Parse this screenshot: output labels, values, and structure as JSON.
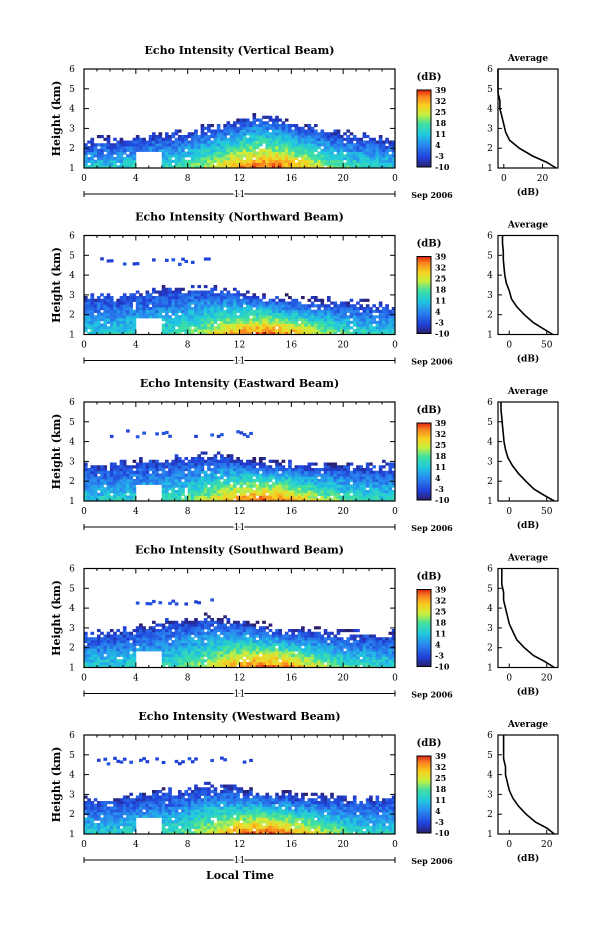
{
  "figure": {
    "xlabel": "Local Time",
    "day_label": "11",
    "date_label": "Sep 2006",
    "ylabel": "Height (km)",
    "profile_title": "Average",
    "profile_xlabel": "(dB)",
    "colorbar_unit": "(dB)"
  },
  "chart_data": [
    {
      "type": "heatmap",
      "title": "Echo Intensity (Vertical Beam)",
      "xlabel": "Local Time",
      "ylabel": "Height (km)",
      "x_ticks": [
        "0",
        "4",
        "8",
        "12",
        "16",
        "20",
        "0"
      ],
      "y_ticks": [
        "1",
        "2",
        "3",
        "4",
        "5",
        "6"
      ],
      "xlim": [
        0,
        24
      ],
      "ylim": [
        1,
        6
      ],
      "colorbar": {
        "label": "(dB)",
        "ticks": [
          "-10",
          "-3",
          "4",
          "11",
          "18",
          "25",
          "32",
          "39"
        ],
        "range": [
          -10,
          39
        ]
      },
      "echo_top_km": [
        2.2,
        2.3,
        2.2,
        2.4,
        2.5,
        2.6,
        2.6,
        2.7,
        2.8,
        3.0,
        3.1,
        3.2,
        3.4,
        3.5,
        3.4,
        3.3,
        3.1,
        3.0,
        2.8,
        2.7,
        2.6,
        2.5,
        2.4,
        2.3
      ],
      "sparse_layer": null,
      "profile": {
        "title": "Average",
        "xlabel": "(dB)",
        "x_ticks": [
          "0",
          "20"
        ],
        "xlim": [
          -3,
          28
        ],
        "heights": [
          1.0,
          1.3,
          1.6,
          2.0,
          2.4,
          2.8,
          3.2,
          3.6,
          4.0,
          4.4,
          4.8,
          5.2,
          5.6,
          6.0
        ],
        "values": [
          27,
          22,
          15,
          8,
          3,
          1,
          0,
          -1,
          -2,
          -2,
          -3,
          -3,
          -3,
          -3
        ]
      }
    },
    {
      "type": "heatmap",
      "title": "Echo Intensity (Northward Beam)",
      "xlabel": "Local Time",
      "ylabel": "Height (km)",
      "x_ticks": [
        "0",
        "4",
        "8",
        "12",
        "16",
        "20",
        "0"
      ],
      "y_ticks": [
        "1",
        "2",
        "3",
        "4",
        "5",
        "6"
      ],
      "xlim": [
        0,
        24
      ],
      "ylim": [
        1,
        6
      ],
      "colorbar": {
        "label": "(dB)",
        "ticks": [
          "-10",
          "-3",
          "4",
          "11",
          "18",
          "25",
          "32",
          "39"
        ],
        "range": [
          -10,
          39
        ]
      },
      "echo_top_km": [
        2.8,
        2.9,
        2.8,
        3.0,
        3.1,
        3.1,
        3.2,
        3.2,
        3.3,
        3.3,
        3.2,
        3.1,
        3.0,
        2.9,
        2.8,
        2.7,
        2.7,
        2.6,
        2.6,
        2.5,
        2.5,
        2.5,
        2.4,
        2.4
      ],
      "sparse_layer": {
        "height_km": 4.7,
        "start_h": 1.0,
        "end_h": 10.0
      },
      "profile": {
        "title": "Average",
        "xlabel": "(dB)",
        "x_ticks": [
          "0",
          "50"
        ],
        "xlim": [
          -15,
          65
        ],
        "heights": [
          1.0,
          1.3,
          1.6,
          2.0,
          2.4,
          2.8,
          3.2,
          3.6,
          4.0,
          4.4,
          4.8,
          5.2,
          5.6,
          6.0
        ],
        "values": [
          58,
          45,
          32,
          20,
          10,
          3,
          0,
          -4,
          -6,
          -7,
          -8,
          -8,
          -9,
          -9
        ]
      }
    },
    {
      "type": "heatmap",
      "title": "Echo Intensity (Eastward Beam)",
      "xlabel": "Local Time",
      "ylabel": "Height (km)",
      "x_ticks": [
        "0",
        "4",
        "8",
        "12",
        "16",
        "20",
        "0"
      ],
      "y_ticks": [
        "1",
        "2",
        "3",
        "4",
        "5",
        "6"
      ],
      "xlim": [
        0,
        24
      ],
      "ylim": [
        1,
        6
      ],
      "colorbar": {
        "label": "(dB)",
        "ticks": [
          "-10",
          "-3",
          "4",
          "11",
          "18",
          "25",
          "32",
          "39"
        ],
        "range": [
          -10,
          39
        ]
      },
      "echo_top_km": [
        2.7,
        2.7,
        2.8,
        2.8,
        2.9,
        3.0,
        3.0,
        3.1,
        3.1,
        3.2,
        3.2,
        3.1,
        3.0,
        2.9,
        2.8,
        2.8,
        2.7,
        2.7,
        2.7,
        2.7,
        2.7,
        2.7,
        2.7,
        2.7
      ],
      "sparse_layer": {
        "height_km": 4.4,
        "start_h": 2.0,
        "end_h": 13.0
      },
      "profile": {
        "title": "Average",
        "xlabel": "(dB)",
        "x_ticks": [
          "0",
          "50"
        ],
        "xlim": [
          -15,
          65
        ],
        "heights": [
          1.0,
          1.3,
          1.6,
          2.0,
          2.4,
          2.8,
          3.2,
          3.6,
          4.0,
          4.4,
          4.8,
          5.2,
          5.6,
          6.0
        ],
        "values": [
          60,
          46,
          33,
          22,
          12,
          4,
          -2,
          -5,
          -7,
          -8,
          -9,
          -10,
          -11,
          -11
        ]
      }
    },
    {
      "type": "heatmap",
      "title": "Echo Intensity (Southward Beam)",
      "xlabel": "Local Time",
      "ylabel": "Height (km)",
      "x_ticks": [
        "0",
        "4",
        "8",
        "12",
        "16",
        "20",
        "0"
      ],
      "y_ticks": [
        "1",
        "2",
        "3",
        "4",
        "5",
        "6"
      ],
      "xlim": [
        0,
        24
      ],
      "ylim": [
        1,
        6
      ],
      "colorbar": {
        "label": "(dB)",
        "ticks": [
          "-10",
          "-3",
          "4",
          "11",
          "18",
          "25",
          "32",
          "39"
        ],
        "range": [
          -10,
          39
        ]
      },
      "echo_top_km": [
        2.6,
        2.6,
        2.7,
        2.8,
        2.9,
        3.0,
        3.2,
        3.3,
        3.3,
        3.4,
        3.3,
        3.2,
        3.1,
        3.0,
        2.9,
        2.8,
        2.8,
        2.7,
        2.7,
        2.6,
        2.6,
        2.6,
        2.6,
        2.6
      ],
      "sparse_layer": {
        "height_km": 4.3,
        "start_h": 3.5,
        "end_h": 11.0
      },
      "profile": {
        "title": "Average",
        "xlabel": "(dB)",
        "x_ticks": [
          "0",
          "20"
        ],
        "xlim": [
          -6,
          26
        ],
        "heights": [
          1.0,
          1.3,
          1.6,
          2.0,
          2.4,
          2.8,
          3.2,
          3.6,
          4.0,
          4.4,
          4.8,
          5.2,
          5.6,
          6.0
        ],
        "values": [
          24,
          19,
          13,
          8,
          4,
          2,
          0,
          -1,
          -2,
          -3,
          -3,
          -4,
          -4,
          -4
        ]
      }
    },
    {
      "type": "heatmap",
      "title": "Echo Intensity (Westward Beam)",
      "xlabel": "Local Time",
      "ylabel": "Height (km)",
      "x_ticks": [
        "0",
        "4",
        "8",
        "12",
        "16",
        "20",
        "0"
      ],
      "y_ticks": [
        "1",
        "2",
        "3",
        "4",
        "5",
        "6"
      ],
      "xlim": [
        0,
        24
      ],
      "ylim": [
        1,
        6
      ],
      "colorbar": {
        "label": "(dB)",
        "ticks": [
          "-10",
          "-3",
          "4",
          "11",
          "18",
          "25",
          "32",
          "39"
        ],
        "range": [
          -10,
          39
        ]
      },
      "echo_top_km": [
        2.6,
        2.7,
        2.7,
        2.8,
        2.9,
        3.0,
        3.0,
        3.1,
        3.2,
        3.3,
        3.3,
        3.2,
        3.1,
        3.0,
        2.9,
        2.9,
        2.8,
        2.8,
        2.8,
        2.8,
        2.7,
        2.7,
        2.7,
        2.7
      ],
      "sparse_layer": {
        "height_km": 4.7,
        "start_h": 1.0,
        "end_h": 13.0
      },
      "profile": {
        "title": "Average",
        "xlabel": "(dB)",
        "x_ticks": [
          "0",
          "20"
        ],
        "xlim": [
          -6,
          26
        ],
        "heights": [
          1.0,
          1.3,
          1.6,
          2.0,
          2.4,
          2.8,
          3.2,
          3.6,
          4.0,
          4.4,
          4.8,
          5.2,
          5.6,
          6.0
        ],
        "values": [
          24,
          20,
          14,
          9,
          5,
          2,
          0,
          -1,
          -2,
          -2,
          -3,
          -3,
          -3,
          -3
        ]
      }
    }
  ]
}
